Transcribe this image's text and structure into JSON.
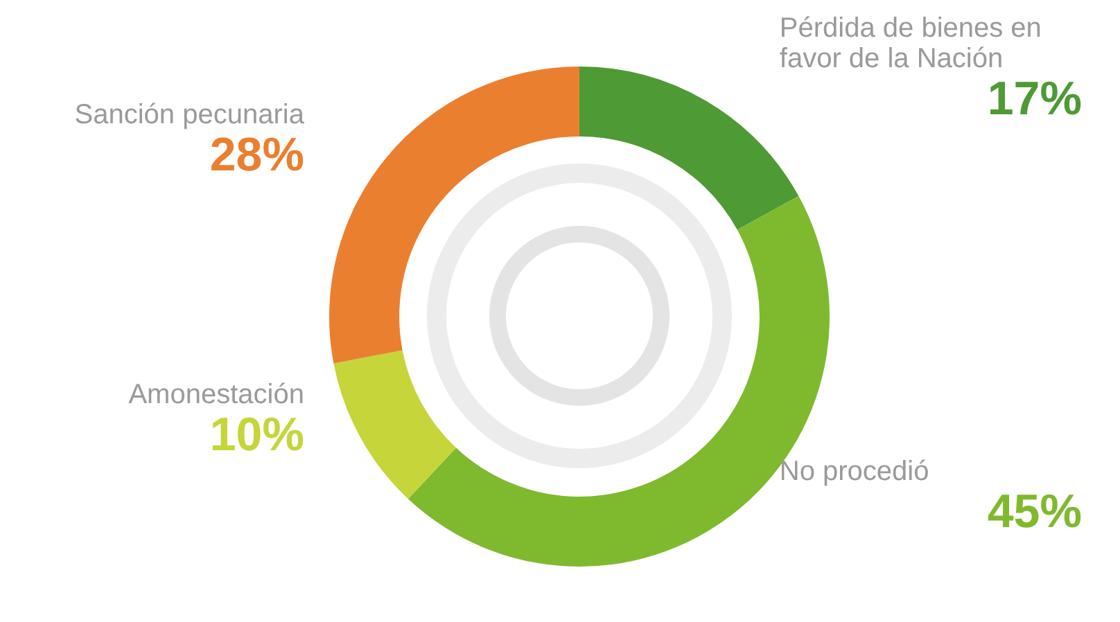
{
  "chart_data": {
    "type": "donut",
    "categories": [
      "Pérdida de bienes en favor de la Nación",
      "No procedió",
      "Amonestación",
      "Sanción pecunaria"
    ],
    "values": [
      17,
      45,
      10,
      28
    ],
    "colors": [
      "#4e9a35",
      "#7fb92e",
      "#c5d53a",
      "#eb7f30"
    ],
    "value_labels": [
      "17%",
      "45%",
      "10%",
      "28%"
    ],
    "legend": false
  }
}
